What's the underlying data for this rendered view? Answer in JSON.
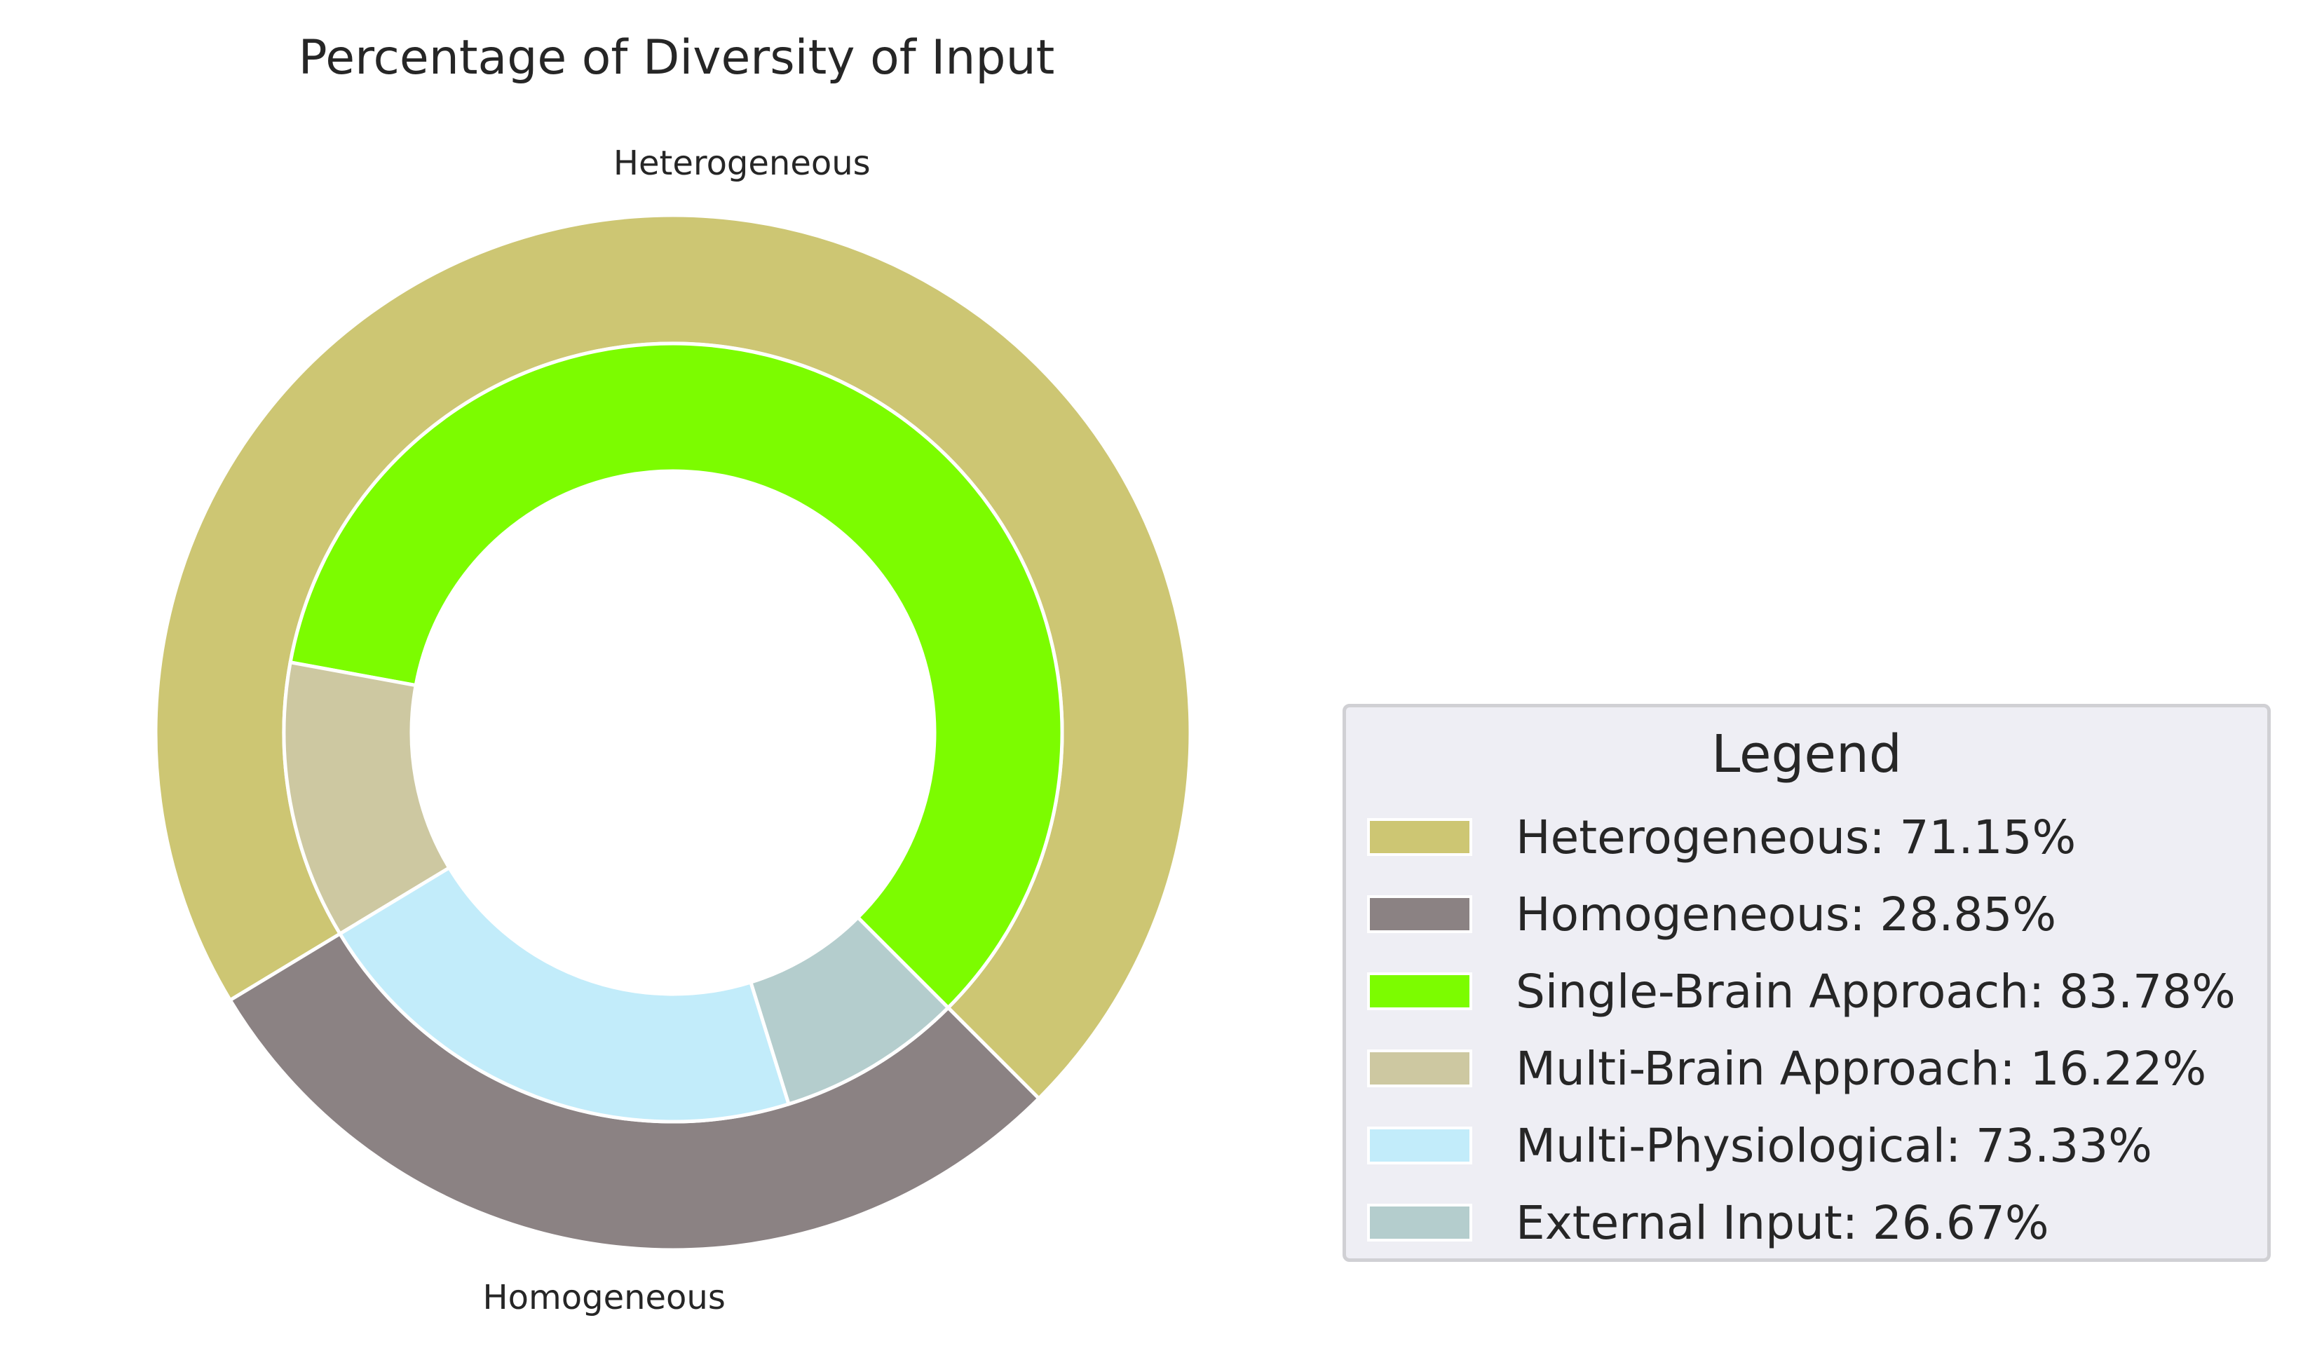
{
  "chart_data": {
    "type": "nested-donut",
    "title": "Percentage of Diversity of Input",
    "outer_ring": {
      "categories": [
        "Heterogeneous",
        "Homogeneous"
      ],
      "values": [
        71.15,
        28.85
      ],
      "colors": [
        "#cdc673",
        "#8b8283"
      ],
      "labels": [
        "Heterogeneous",
        "Homogeneous"
      ]
    },
    "inner_ring": {
      "categories": [
        "Single-Brain Approach",
        "Multi-Brain Approach",
        "Multi-Physiological",
        "External Input"
      ],
      "values": [
        83.78,
        16.22,
        73.33,
        26.67
      ],
      "parent_shares": [
        71.15,
        71.15,
        28.85,
        28.85
      ],
      "colors": [
        "#7cfc00",
        "#cdc8a1",
        "#c2ecfa",
        "#b4cdcd"
      ]
    },
    "legend": {
      "title": "Legend",
      "position": "lower-right",
      "items": [
        {
          "label": "Heterogeneous: 71.15%",
          "color": "#cdc673"
        },
        {
          "label": "Homogeneous: 28.85%",
          "color": "#8b8283"
        },
        {
          "label": "Single-Brain Approach: 83.78%",
          "color": "#7cfc00"
        },
        {
          "label": "Multi-Brain Approach: 16.22%",
          "color": "#cdc8a1"
        },
        {
          "label": "Multi-Physiological: 73.33%",
          "color": "#c2ecfa"
        },
        {
          "label": "External Input: 26.67%",
          "color": "#b4cdcd"
        }
      ]
    },
    "start_angle_deg": -45,
    "direction": "counterclockwise"
  }
}
